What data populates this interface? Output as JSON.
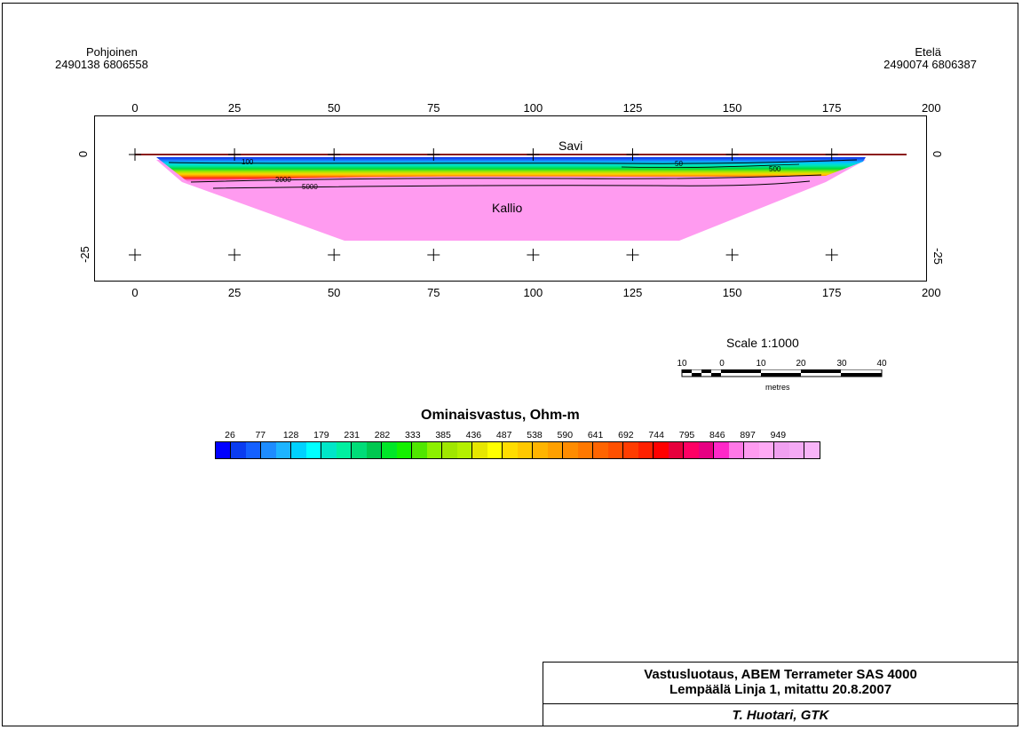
{
  "endpoints": {
    "left": {
      "name": "Pohjoinen",
      "coords": "2490138 6806558"
    },
    "right": {
      "name": "Etelä",
      "coords": "2490074 6806387"
    }
  },
  "x_ticks": [
    "0",
    "25",
    "50",
    "75",
    "100",
    "125",
    "150",
    "175",
    "200"
  ],
  "y_ticks": [
    "0",
    "-25"
  ],
  "layers": {
    "top": "Savi",
    "bottom": "Kallio"
  },
  "contour_labels": [
    "100",
    "2000",
    "5000",
    "50",
    "500"
  ],
  "scale": {
    "title": "Scale 1:1000",
    "numbers": [
      "10",
      "0",
      "10",
      "20",
      "30",
      "40"
    ],
    "unit": "metres"
  },
  "legend": {
    "title": "Ominaisvastus, Ohm-m",
    "values": [
      "26",
      "77",
      "128",
      "179",
      "231",
      "282",
      "333",
      "385",
      "436",
      "487",
      "538",
      "590",
      "641",
      "692",
      "744",
      "795",
      "846",
      "897",
      "949"
    ],
    "colors": [
      "#0000ff",
      "#0a3cf0",
      "#1460ff",
      "#1e8cff",
      "#1eb4ff",
      "#00d2ff",
      "#00ffff",
      "#00e6c8",
      "#00f0a0",
      "#00dc78",
      "#00c850",
      "#00e628",
      "#14f000",
      "#50e600",
      "#8cf000",
      "#a0e600",
      "#b4f000",
      "#e6e600",
      "#ffff00",
      "#ffdc00",
      "#ffc800",
      "#ffb400",
      "#ffa000",
      "#ff8c00",
      "#ff7800",
      "#ff6400",
      "#ff5000",
      "#ff3c00",
      "#ff2000",
      "#ff0000",
      "#e6003c",
      "#ff0064",
      "#e60082",
      "#ff28c8",
      "#ff78e6",
      "#ff9bf0",
      "#ffaaf5",
      "#f0a0f0",
      "#f5aaf5",
      "#f8b4f8"
    ]
  },
  "title_block": {
    "line1": "Vastusluotaus, ABEM Terrameter SAS 4000",
    "line2": "Lempäälä Linja 1, mitattu 20.8.2007",
    "author": "T. Huotari, GTK"
  }
}
